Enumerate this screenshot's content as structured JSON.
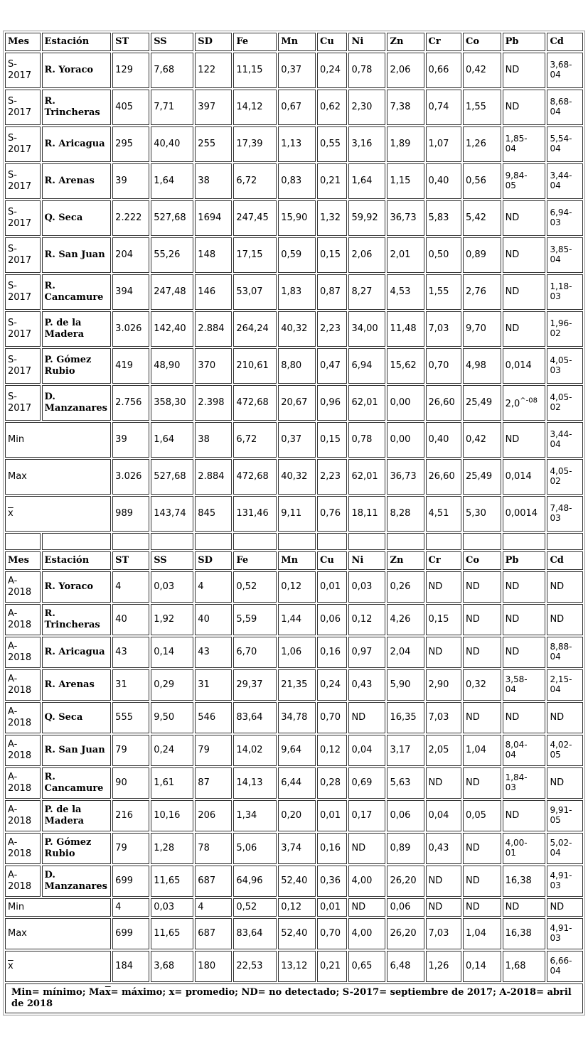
{
  "headers": [
    "Mes",
    "Estación",
    "ST",
    "SS",
    "SD",
    "Fe",
    "Mn",
    "Cu",
    "Ni",
    "Zn",
    "Cr",
    "Co",
    "Pb",
    "Cd"
  ],
  "section_2017": {
    "rows": [
      [
        "S-2017",
        "R. Yoraco",
        "129",
        "7,68",
        "122",
        "11,15",
        "0,37",
        "0,24",
        "0,78",
        "2,06",
        "0,66",
        "0,42",
        "ND",
        "3,68-04"
      ],
      [
        "S-2017",
        "R. Trincheras",
        "405",
        "7,71",
        "397",
        "14,12",
        "0,67",
        "0,62",
        "2,30",
        "7,38",
        "0,74",
        "1,55",
        "ND",
        "8,68-04"
      ],
      [
        "S-2017",
        "R. Aricagua",
        "295",
        "40,40",
        "255",
        "17,39",
        "1,13",
        "0,55",
        "3,16",
        "1,89",
        "1,07",
        "1,26",
        "1,85-04",
        "5,54-04"
      ],
      [
        "S-2017",
        "R. Arenas",
        "39",
        "1,64",
        "38",
        "6,72",
        "0,83",
        "0,21",
        "1,64",
        "1,15",
        "0,40",
        "0,56",
        "9,84-05",
        "3,44-04"
      ],
      [
        "S-2017",
        "Q. Seca",
        "2.222",
        "527,68",
        "1694",
        "247,45",
        "15,90",
        "1,32",
        "59,92",
        "36,73",
        "5,83",
        "5,42",
        "ND",
        "6,94-03"
      ],
      [
        "S-2017",
        "R. San Juan",
        "204",
        "55,26",
        "148",
        "17,15",
        "0,59",
        "0,15",
        "2,06",
        "2,01",
        "0,50",
        "0,89",
        "ND",
        "3,85-04"
      ],
      [
        "S-2017",
        "R. Cancamure",
        "394",
        "247,48",
        "146",
        "53,07",
        "1,83",
        "0,87",
        "8,27",
        "4,53",
        "1,55",
        "2,76",
        "ND",
        "1,18-03"
      ],
      [
        "S-2017",
        "P. de la Madera",
        "3.026",
        "142,40",
        "2.884",
        "264,24",
        "40,32",
        "2,23",
        "34,00",
        "11,48",
        "7,03",
        "9,70",
        "ND",
        "1,96-02"
      ],
      [
        "S-2017",
        "P. Gómez Rubio",
        "419",
        "48,90",
        "370",
        "210,61",
        "8,80",
        "0,47",
        "6,94",
        "15,62",
        "0,70",
        "4,98",
        "0,014",
        "4,05-03"
      ],
      [
        "S-2017",
        "D. Manzanares",
        "2.756",
        "358,30",
        "2.398",
        "472,68",
        "20,67",
        "0,96",
        "62,01",
        "0,00",
        "26,60",
        "25,49",
        "2,0^-08",
        "4,05-02"
      ]
    ],
    "stats": [
      [
        "Min",
        "39",
        "1,64",
        "38",
        "6,72",
        "0,37",
        "0,15",
        "0,78",
        "0,00",
        "0,40",
        "0,42",
        "ND",
        "3,44-04"
      ],
      [
        "Max",
        "3.026",
        "527,68",
        "2.884",
        "472,68",
        "40,32",
        "2,23",
        "62,01",
        "36,73",
        "26,60",
        "25,49",
        "0,014",
        "4,05-02"
      ],
      [
        "x",
        "989",
        "143,74",
        "845",
        "131,46",
        "9,11",
        "0,76",
        "18,11",
        "8,28",
        "4,51",
        "5,30",
        "0,0014",
        "7,48-03"
      ]
    ]
  },
  "section_2018": {
    "rows": [
      [
        "A-2018",
        "R. Yoraco",
        "4",
        "0,03",
        "4",
        "0,52",
        "0,12",
        "0,01",
        "0,03",
        "0,26",
        "ND",
        "ND",
        "ND",
        "ND"
      ],
      [
        "A-2018",
        "R. Trincheras",
        "40",
        "1,92",
        "40",
        "5,59",
        "1,44",
        "0,06",
        "0,12",
        "4,26",
        "0,15",
        "ND",
        "ND",
        "ND"
      ],
      [
        "A-2018",
        "R. Aricagua",
        "43",
        "0,14",
        "43",
        "6,70",
        "1,06",
        "0,16",
        "0,97",
        "2,04",
        "ND",
        "ND",
        "ND",
        "8,88-04"
      ],
      [
        "A-2018",
        "R. Arenas",
        "31",
        "0,29",
        "31",
        "29,37",
        "21,35",
        "0,24",
        "0,43",
        "5,90",
        "2,90",
        "0,32",
        "3,58-04",
        "2,15-04"
      ],
      [
        "A-2018",
        "Q. Seca",
        "555",
        "9,50",
        "546",
        "83,64",
        "34,78",
        "0,70",
        "ND",
        "16,35",
        "7,03",
        "ND",
        "ND",
        "ND"
      ],
      [
        "A-2018",
        "R. San Juan",
        "79",
        "0,24",
        "79",
        "14,02",
        "9,64",
        "0,12",
        "0,04",
        "3,17",
        "2,05",
        "1,04",
        "8,04-04",
        "4,02-05"
      ],
      [
        "A-2018",
        "R. Cancamure",
        "90",
        "1,61",
        "87",
        "14,13",
        "6,44",
        "0,28",
        "0,69",
        "5,63",
        "ND",
        "ND",
        "1,84-03",
        "ND"
      ],
      [
        "A-2018",
        "P. de la Madera",
        "216",
        "10,16",
        "206",
        "1,34",
        "0,20",
        "0,01",
        "0,17",
        "0,06",
        "0,04",
        "0,05",
        "ND",
        "9,91-05"
      ],
      [
        "A-2018",
        "P. Gómez Rubio",
        "79",
        "1,28",
        "78",
        "5,06",
        "3,74",
        "0,16",
        "ND",
        "0,89",
        "0,43",
        "ND",
        "4,00-01",
        "5,02-04"
      ],
      [
        "A-2018",
        "D. Manzanares",
        "699",
        "11,65",
        "687",
        "64,96",
        "52,40",
        "0,36",
        "4,00",
        "26,20",
        "ND",
        "ND",
        "16,38",
        "4,91-03"
      ]
    ],
    "stats": [
      [
        "Min",
        "4",
        "0,03",
        "4",
        "0,52",
        "0,12",
        "0,01",
        "ND",
        "0,06",
        "ND",
        "ND",
        "ND",
        "ND"
      ],
      [
        "Max",
        "699",
        "11,65",
        "687",
        "83,64",
        "52,40",
        "0,70",
        "4,00",
        "26,20",
        "7,03",
        "1,04",
        "16,38",
        "4,91-03"
      ],
      [
        "x",
        "184",
        "3,68",
        "180",
        "22,53",
        "13,12",
        "0,21",
        "0,65",
        "6,48",
        "1,26",
        "0,14",
        "1,68",
        "6,66-04"
      ]
    ]
  },
  "footnote": "Min= mínimo; Max= máximo; x= promedio; ND= no detectado; S-2017= septiembre de 2017; A-2018= abril de 2018"
}
